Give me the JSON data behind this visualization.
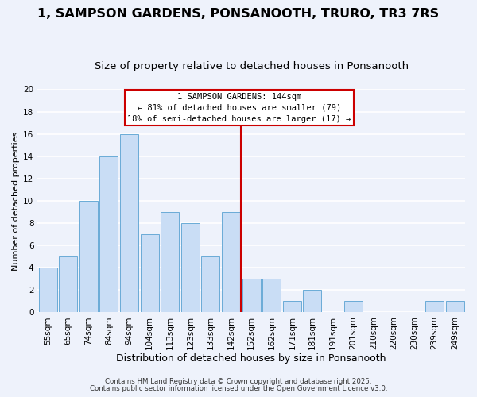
{
  "title": "1, SAMPSON GARDENS, PONSANOOTH, TRURO, TR3 7RS",
  "subtitle": "Size of property relative to detached houses in Ponsanooth",
  "xlabel": "Distribution of detached houses by size in Ponsanooth",
  "ylabel": "Number of detached properties",
  "bar_labels": [
    "55sqm",
    "65sqm",
    "74sqm",
    "84sqm",
    "94sqm",
    "104sqm",
    "113sqm",
    "123sqm",
    "133sqm",
    "142sqm",
    "152sqm",
    "162sqm",
    "171sqm",
    "181sqm",
    "191sqm",
    "201sqm",
    "210sqm",
    "220sqm",
    "230sqm",
    "239sqm",
    "249sqm"
  ],
  "bar_values": [
    4,
    5,
    10,
    14,
    16,
    7,
    9,
    8,
    5,
    9,
    3,
    3,
    1,
    2,
    0,
    1,
    0,
    0,
    0,
    1,
    1
  ],
  "bar_color": "#c9ddf5",
  "bar_edge_color": "#6aabd6",
  "background_color": "#eef2fb",
  "grid_color": "#ffffff",
  "annotation_text_line1": "1 SAMPSON GARDENS: 144sqm",
  "annotation_text_line2": "← 81% of detached houses are smaller (79)",
  "annotation_text_line3": "18% of semi-detached houses are larger (17) →",
  "annotation_box_color": "#ffffff",
  "annotation_box_edge": "#cc0000",
  "vline_color": "#cc0000",
  "vline_x_index": 9.5,
  "ylim": [
    0,
    20
  ],
  "yticks": [
    0,
    2,
    4,
    6,
    8,
    10,
    12,
    14,
    16,
    18,
    20
  ],
  "title_fontsize": 11.5,
  "subtitle_fontsize": 9.5,
  "xlabel_fontsize": 9,
  "ylabel_fontsize": 8,
  "tick_fontsize": 7.5,
  "annotation_fontsize": 7.5,
  "footnote1": "Contains HM Land Registry data © Crown copyright and database right 2025.",
  "footnote2": "Contains public sector information licensed under the Open Government Licence v3.0."
}
